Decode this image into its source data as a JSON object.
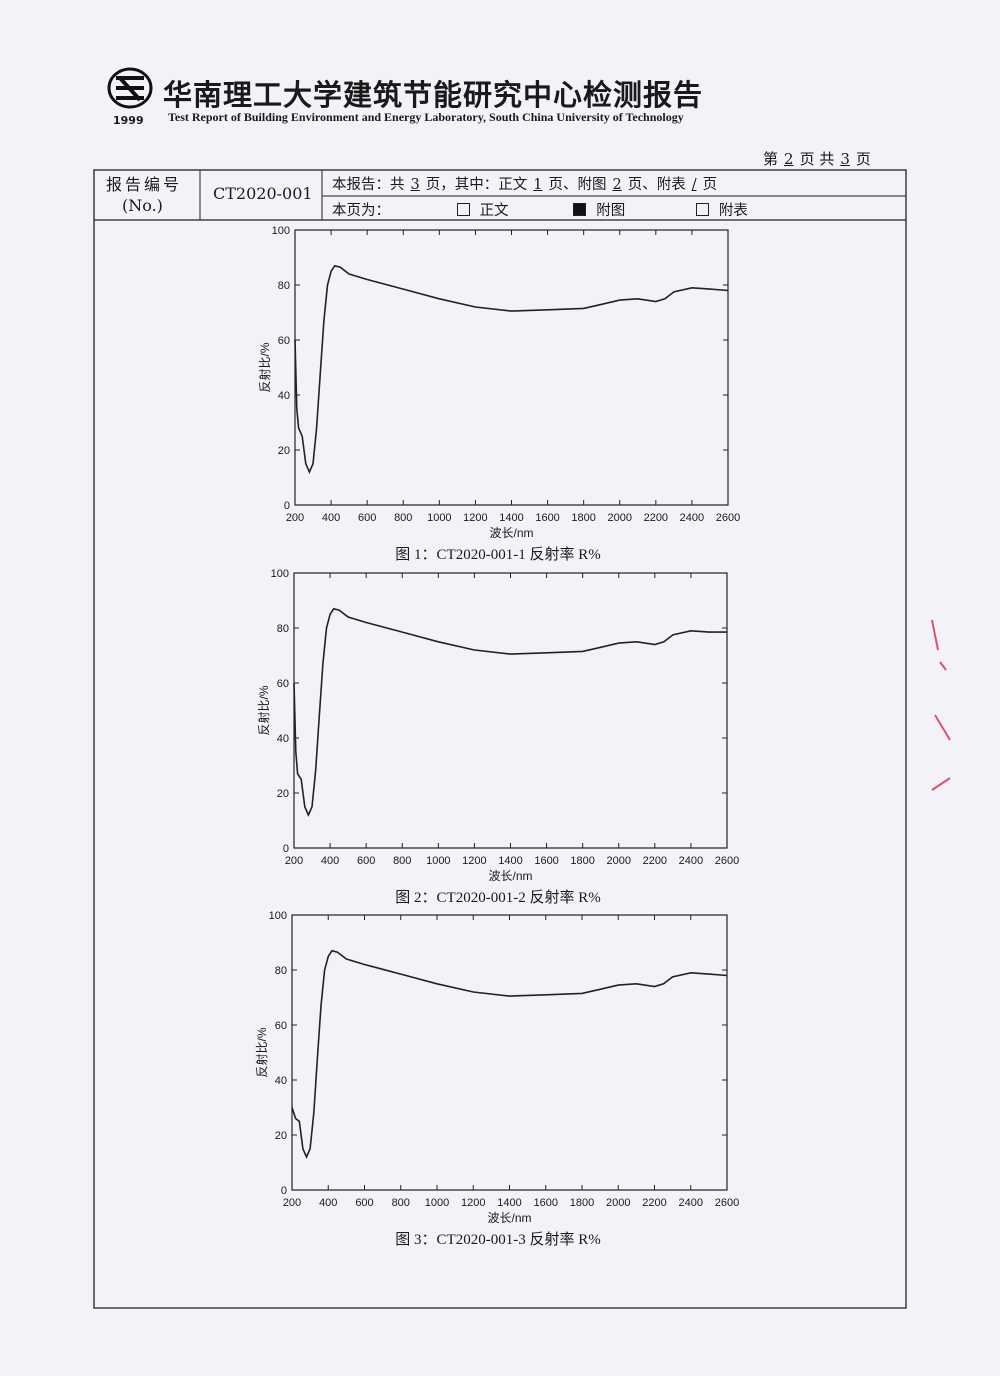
{
  "header": {
    "year": "1999",
    "title_cn": "华南理工大学建筑节能研究中心检测报告",
    "title_en": "Test Report of Building Environment and Energy Laboratory, South China University of Technology"
  },
  "page_info": {
    "prefix": "第",
    "page": "2",
    "middle": "页 共",
    "total": "3",
    "suffix": "页"
  },
  "table": {
    "no_label": "报告编号",
    "no_label_en": "(No.)",
    "report_no": "CT2020-001",
    "summary": [
      "本报告：共",
      "3",
      "页，其中：正文",
      "1",
      "页、附图",
      "2",
      "页、附表",
      "/",
      "页"
    ],
    "page_type_label": "本页为：",
    "options": [
      "正文",
      "附图",
      "附表"
    ]
  },
  "chart_data": [
    {
      "type": "line",
      "caption": "图 1：CT2020-001-1 反射率 R%",
      "xlabel": "波长/nm",
      "ylabel": "反射比/%",
      "color": "#222222",
      "x": [
        200,
        210,
        220,
        240,
        260,
        280,
        300,
        320,
        340,
        360,
        380,
        400,
        420,
        450,
        500,
        600,
        800,
        1000,
        1200,
        1400,
        1600,
        1800,
        1900,
        2000,
        2100,
        2200,
        2250,
        2300,
        2400,
        2500,
        2600
      ],
      "values": [
        60,
        35,
        28,
        25,
        15,
        12,
        15,
        28,
        48,
        67,
        80,
        85,
        87,
        86.5,
        84,
        82,
        78.5,
        75,
        72,
        70.5,
        71,
        71.5,
        73,
        74.5,
        75,
        74,
        75,
        77.5,
        79,
        78.5,
        78
      ],
      "xlim": [
        200,
        2600
      ],
      "ylim": [
        0,
        100
      ],
      "xticks": [
        200,
        400,
        600,
        800,
        1000,
        1200,
        1400,
        1600,
        1800,
        2000,
        2200,
        2400,
        2600
      ],
      "yticks": [
        0,
        20,
        40,
        60,
        80,
        100
      ]
    },
    {
      "type": "line",
      "caption": "图 2：CT2020-001-2 反射率 R%",
      "xlabel": "波长/nm",
      "ylabel": "反射比/%",
      "color": "#222222",
      "x": [
        200,
        210,
        220,
        240,
        260,
        280,
        300,
        320,
        340,
        360,
        380,
        400,
        420,
        450,
        500,
        600,
        800,
        1000,
        1200,
        1400,
        1600,
        1800,
        1900,
        2000,
        2100,
        2200,
        2250,
        2300,
        2400,
        2500,
        2600
      ],
      "values": [
        60,
        35,
        27,
        25,
        15,
        12,
        15,
        28,
        48,
        67,
        80,
        85,
        87,
        86.5,
        84,
        82,
        78.5,
        75,
        72,
        70.5,
        71,
        71.5,
        73,
        74.5,
        75,
        74,
        75,
        77.5,
        79,
        78.5,
        78.5
      ],
      "xlim": [
        200,
        2600
      ],
      "ylim": [
        0,
        100
      ],
      "xticks": [
        200,
        400,
        600,
        800,
        1000,
        1200,
        1400,
        1600,
        1800,
        2000,
        2200,
        2400,
        2600
      ],
      "yticks": [
        0,
        20,
        40,
        60,
        80,
        100
      ]
    },
    {
      "type": "line",
      "caption": "图 3：CT2020-001-3 反射率 R%",
      "xlabel": "波长/nm",
      "ylabel": "反射比/%",
      "color": "#222222",
      "x": [
        200,
        210,
        220,
        240,
        260,
        280,
        300,
        320,
        340,
        360,
        380,
        400,
        420,
        450,
        500,
        600,
        800,
        1000,
        1200,
        1400,
        1600,
        1800,
        1900,
        2000,
        2100,
        2200,
        2250,
        2300,
        2400,
        2500,
        2600
      ],
      "values": [
        30,
        28,
        26,
        25,
        15,
        12,
        15,
        28,
        48,
        67,
        80,
        85,
        87,
        86.5,
        84,
        82,
        78.5,
        75,
        72,
        70.5,
        71,
        71.5,
        73,
        74.5,
        75,
        74,
        75,
        77.5,
        79,
        78.5,
        78
      ],
      "xlim": [
        200,
        2600
      ],
      "ylim": [
        0,
        100
      ],
      "xticks": [
        200,
        400,
        600,
        800,
        1000,
        1200,
        1400,
        1600,
        1800,
        2000,
        2200,
        2400,
        2600
      ],
      "yticks": [
        0,
        20,
        40,
        60,
        80,
        100
      ]
    }
  ]
}
